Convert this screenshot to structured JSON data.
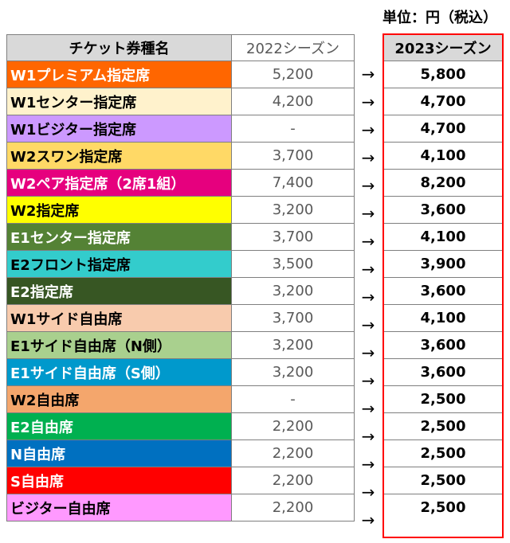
{
  "unit_label": "単位：円（税込）",
  "headers": {
    "name": "チケット券種名",
    "y2022": "2022シーズン",
    "y2023": "2023シーズン"
  },
  "arrow": "→",
  "rows": [
    {
      "name": "W1プレミアム指定席",
      "y2022": "5,200",
      "y2023": "5,800",
      "bg": "#ff6600",
      "fg": "#ffffff"
    },
    {
      "name": "W1センター指定席",
      "y2022": "4,200",
      "y2023": "4,700",
      "bg": "#fff2cc",
      "fg": "#000000"
    },
    {
      "name": "W1ビジター指定席",
      "y2022": "-",
      "y2023": "4,700",
      "bg": "#cc99ff",
      "fg": "#000000"
    },
    {
      "name": "W2スワン指定席",
      "y2022": "3,700",
      "y2023": "4,100",
      "bg": "#ffd966",
      "fg": "#000000"
    },
    {
      "name": "W2ペア指定席（2席1組）",
      "y2022": "7,400",
      "y2023": "8,200",
      "bg": "#e6007e",
      "fg": "#ffffff"
    },
    {
      "name": "W2指定席",
      "y2022": "3,200",
      "y2023": "3,600",
      "bg": "#ffff00",
      "fg": "#000000"
    },
    {
      "name": "E1センター指定席",
      "y2022": "3,700",
      "y2023": "4,100",
      "bg": "#548235",
      "fg": "#ffffff"
    },
    {
      "name": "E2フロント指定席",
      "y2022": "3,500",
      "y2023": "3,900",
      "bg": "#33cccc",
      "fg": "#000000"
    },
    {
      "name": "E2指定席",
      "y2022": "3,200",
      "y2023": "3,600",
      "bg": "#375623",
      "fg": "#ffffff"
    },
    {
      "name": "W1サイド自由席",
      "y2022": "3,700",
      "y2023": "4,100",
      "bg": "#f8cbad",
      "fg": "#000000"
    },
    {
      "name": "E1サイド自由席（N側）",
      "y2022": "3,200",
      "y2023": "3,600",
      "bg": "#a9d08e",
      "fg": "#000000"
    },
    {
      "name": "E1サイド自由席（S側）",
      "y2022": "3,200",
      "y2023": "3,600",
      "bg": "#0099cc",
      "fg": "#ffffff"
    },
    {
      "name": "W2自由席",
      "y2022": "-",
      "y2023": "2,500",
      "bg": "#f4a66c",
      "fg": "#000000"
    },
    {
      "name": "E2自由席",
      "y2022": "2,200",
      "y2023": "2,500",
      "bg": "#00b050",
      "fg": "#ffffff"
    },
    {
      "name": "N自由席",
      "y2022": "2,200",
      "y2023": "2,500",
      "bg": "#0070c0",
      "fg": "#ffffff"
    },
    {
      "name": "S自由席",
      "y2022": "2,200",
      "y2023": "2,500",
      "bg": "#ff0000",
      "fg": "#ffffff"
    },
    {
      "name": "ビジター自由席",
      "y2022": "2,200",
      "y2023": "2,500",
      "bg": "#ff99ff",
      "fg": "#000000"
    }
  ]
}
